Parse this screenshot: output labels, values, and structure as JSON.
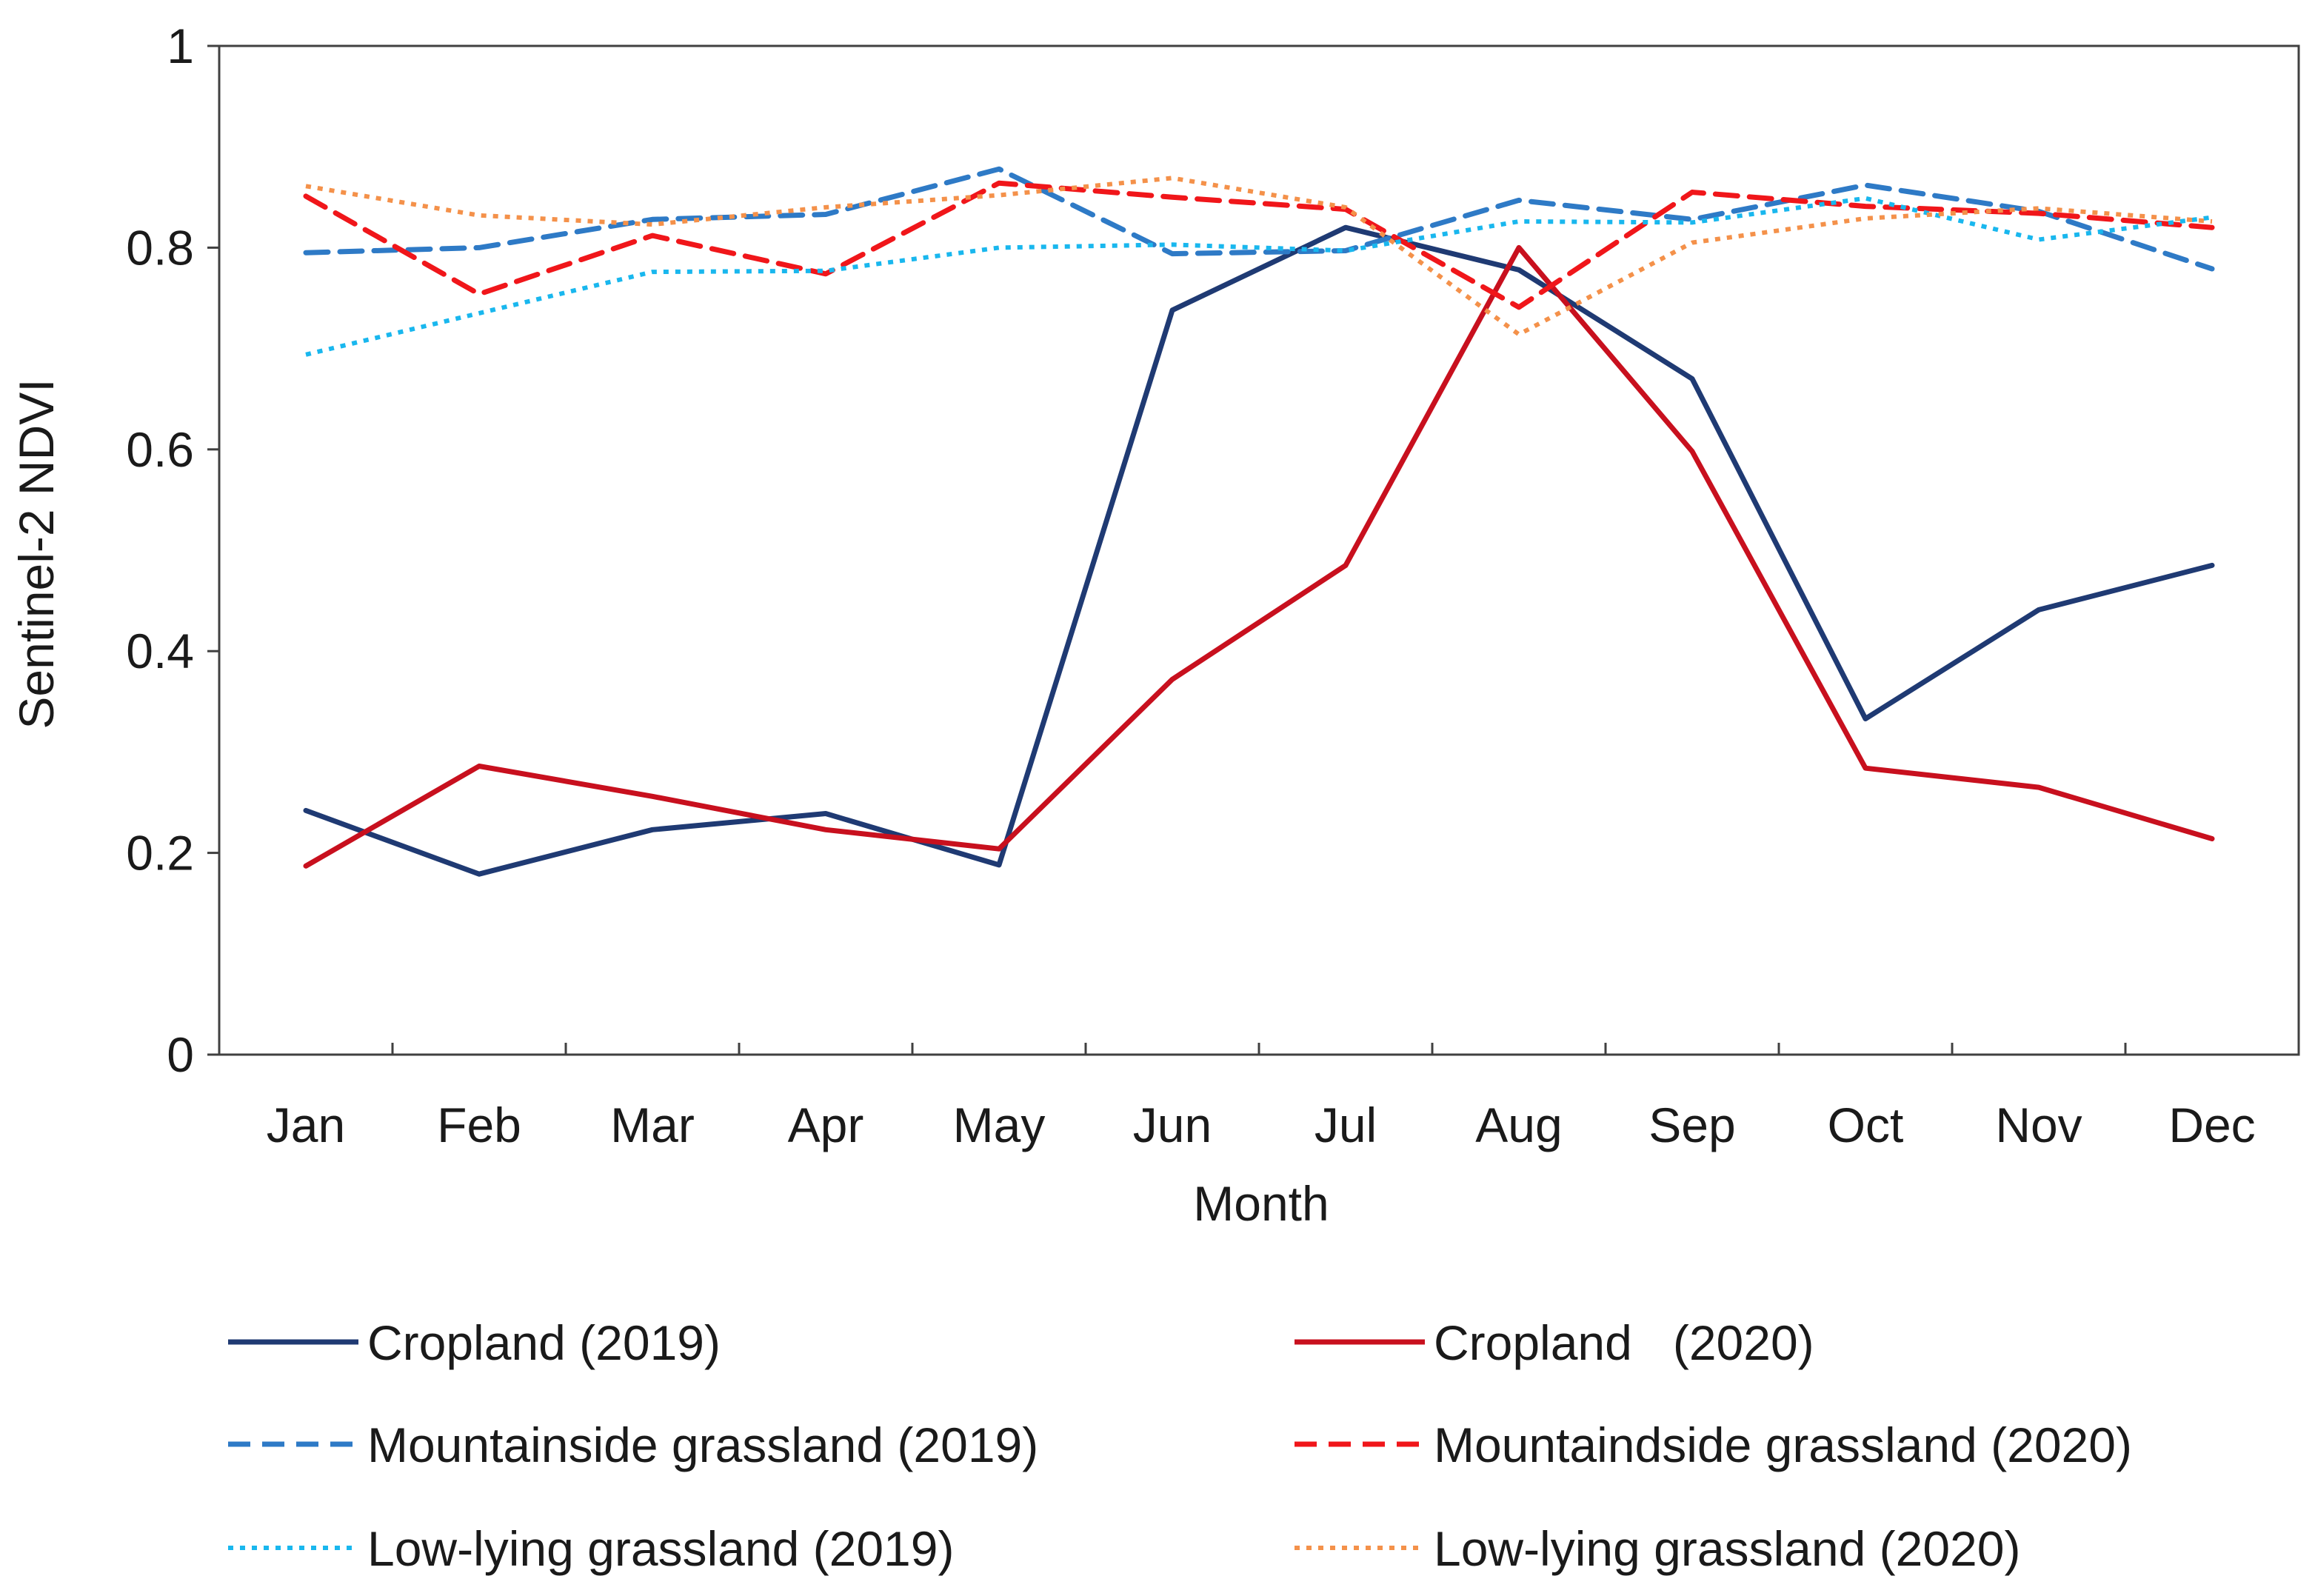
{
  "chart_data": {
    "type": "line",
    "title": "",
    "xlabel": "Month",
    "ylabel": "Sentinel-2 NDVI",
    "categories": [
      "Jan",
      "Feb",
      "Mar",
      "Apr",
      "May",
      "Jun",
      "Jul",
      "Aug",
      "Sep",
      "Oct",
      "Nov",
      "Dec"
    ],
    "ylim": [
      0,
      1
    ],
    "yticks": [
      {
        "value": 0,
        "label": "0"
      },
      {
        "value": 0.2,
        "label": "0.2"
      },
      {
        "value": 0.4,
        "label": "0.4"
      },
      {
        "value": 0.6,
        "label": "0.6"
      },
      {
        "value": 0.8,
        "label": "0.8"
      },
      {
        "value": 1,
        "label": "1"
      }
    ],
    "grid": false,
    "legend_position": "bottom",
    "series": [
      {
        "name": "Cropland (2019)",
        "color": "#1f3a73",
        "style": "solid",
        "values": [
          0.242,
          0.179,
          0.223,
          0.239,
          0.188,
          0.738,
          0.82,
          0.778,
          0.67,
          0.333,
          0.441,
          0.485
        ]
      },
      {
        "name": "Cropland   (2020)",
        "color": "#c8101e",
        "style": "solid",
        "values": [
          0.187,
          0.286,
          0.256,
          0.223,
          0.204,
          0.372,
          0.485,
          0.8,
          0.598,
          0.284,
          0.265,
          0.214
        ]
      },
      {
        "name": "Mountainside grassland (2019)",
        "color": "#2e7ac6",
        "style": "dashed",
        "values": [
          0.795,
          0.8,
          0.828,
          0.833,
          0.878,
          0.794,
          0.797,
          0.847,
          0.828,
          0.862,
          0.836,
          0.779
        ]
      },
      {
        "name": "Mountaindside grassland (2020)",
        "color": "#f0161a",
        "style": "dashed",
        "values": [
          0.851,
          0.754,
          0.812,
          0.774,
          0.864,
          0.85,
          0.838,
          0.741,
          0.855,
          0.841,
          0.834,
          0.82
        ]
      },
      {
        "name": "Low-lying grassland (2019)",
        "color": "#19b7ee",
        "style": "dotted",
        "values": [
          0.694,
          0.735,
          0.776,
          0.777,
          0.8,
          0.803,
          0.797,
          0.826,
          0.825,
          0.849,
          0.808,
          0.83
        ]
      },
      {
        "name": "Low-lying grassland (2020)",
        "color": "#f4914a",
        "style": "dotted",
        "values": [
          0.861,
          0.832,
          0.823,
          0.84,
          0.852,
          0.869,
          0.84,
          0.714,
          0.805,
          0.829,
          0.839,
          0.826
        ]
      }
    ]
  }
}
